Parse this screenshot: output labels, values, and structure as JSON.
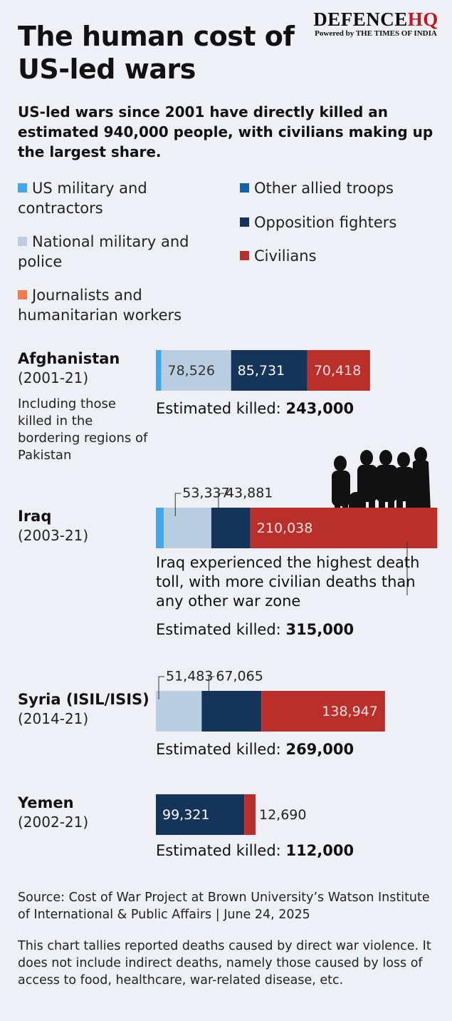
{
  "header": {
    "logo": "DEFENCE",
    "logo_accent": "HQ",
    "logo_sub": "Powered by THE TIMES OF INDIA"
  },
  "chart_data": {
    "type": "bar",
    "orientation": "horizontal",
    "stacked": true,
    "title": "The human cost of US-led wars",
    "subtitle": "US-led wars since 2001 have directly killed an estimated 940,000 people, with civilians making up the largest share.",
    "categories": [
      "Afghanistan",
      "Iraq",
      "Syria (ISIL/ISIS)",
      "Yemen"
    ],
    "periods": [
      "(2001-21)",
      "(2003-21)",
      "(2014-21)",
      "(2002-21)"
    ],
    "notes": [
      "Including those killed in the bordering regions of Pakistan",
      "Iraq experienced the highest death toll, with more civilian deaths than any other war zone",
      null,
      null
    ],
    "total_label": "Estimated killed:",
    "totals": [
      {
        "value": 243000,
        "label": "243,000"
      },
      {
        "value": 315000,
        "label": "315,000"
      },
      {
        "value": 269000,
        "label": "269,000"
      },
      {
        "value": 112000,
        "label": "112,000"
      }
    ],
    "series": [
      {
        "name": "US military and contractors",
        "color": "#45a6ec",
        "values": [
          6000,
          9000,
          null,
          null
        ],
        "value_labels": [
          null,
          null,
          null,
          null
        ]
      },
      {
        "name": "National military and police",
        "color": "#b9cfe1",
        "values": [
          78526,
          53337,
          51483,
          null
        ],
        "value_labels": [
          "78,526",
          "53,337",
          "51,483",
          null
        ]
      },
      {
        "name": "Journalists and humanitarian workers",
        "color": "#f47a50",
        "values": [
          null,
          null,
          null,
          null
        ],
        "value_labels": [
          null,
          null,
          null,
          null
        ]
      },
      {
        "name": "Other allied troops",
        "color": "#1464a5",
        "values": [
          null,
          null,
          null,
          null
        ],
        "value_labels": [
          null,
          null,
          null,
          null
        ]
      },
      {
        "name": "Opposition fighters",
        "color": "#15345a",
        "values": [
          85731,
          43881,
          67065,
          99321
        ],
        "value_labels": [
          "85,731",
          "43,881",
          "67,065",
          "99,321"
        ]
      },
      {
        "name": "Civilians",
        "color": "#b9302b",
        "values": [
          70418,
          210038,
          138947,
          12690
        ],
        "value_labels": [
          "70,418",
          "210,038",
          "138,947",
          "12,690"
        ]
      }
    ]
  },
  "source": "Source: Cost of War Project at Brown University’s Watson Institute of International & Public Affairs | June 24, 2025",
  "footnote": "This chart tallies reported deaths caused by direct war violence. It does not include indirect deaths, namely those caused by loss of access to food, healthcare, war-related disease, etc."
}
